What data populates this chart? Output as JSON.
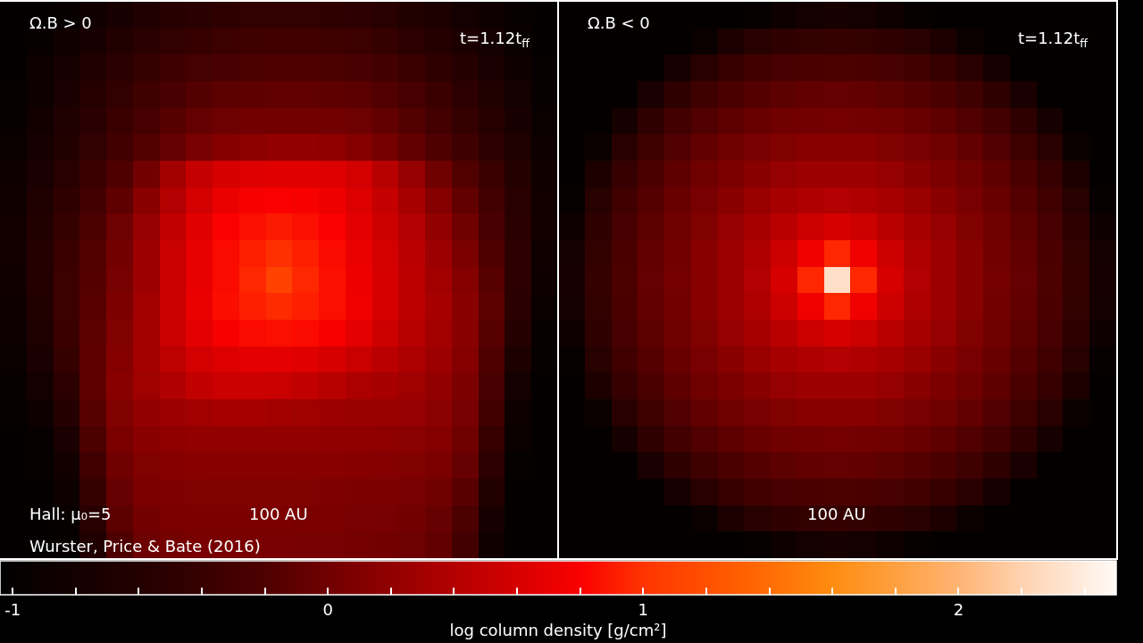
{
  "chart_data": {
    "type": "heatmap",
    "categories": [
      null,
      null,
      null,
      null,
      null,
      null,
      null,
      null,
      null,
      null,
      null,
      null,
      null,
      null,
      null,
      null,
      null,
      null,
      null,
      null,
      null,
      null,
      null,
      null,
      null,
      null,
      null,
      null,
      null,
      null,
      null,
      null,
      null,
      null,
      null,
      null,
      null,
      null,
      null,
      null,
      null,
      null
    ],
    "y_categories": [
      null,
      null,
      null,
      null,
      null,
      null,
      null,
      null,
      null,
      null,
      null,
      null,
      null,
      null,
      null,
      null,
      null,
      null,
      null,
      null,
      null
    ],
    "cells": [
      [
        -1.0,
        -1.0,
        -0.95,
        -0.85,
        -0.75,
        -0.65,
        -0.58,
        -0.52,
        -0.48,
        -0.46,
        -0.45,
        -0.45,
        -0.47,
        -0.5,
        -0.55,
        -0.62,
        -0.7,
        -0.8,
        -0.88,
        -0.95,
        -1.0,
        -1.0,
        -1.0,
        -1.0,
        -1.0,
        -1.0,
        -1.0,
        -1.0,
        -0.97,
        -0.88,
        -0.8,
        -0.78,
        -0.8,
        -0.88,
        -0.97,
        -1.0,
        -1.0,
        -1.0,
        -1.0,
        -1.0,
        -1.0,
        -1.0
      ],
      [
        -1.0,
        -0.95,
        -0.85,
        -0.75,
        -0.62,
        -0.52,
        -0.45,
        -0.4,
        -0.36,
        -0.33,
        -0.32,
        -0.32,
        -0.33,
        -0.36,
        -0.42,
        -0.5,
        -0.6,
        -0.7,
        -0.8,
        -0.92,
        -1.0,
        -1.0,
        -1.0,
        -1.0,
        -1.0,
        -1.0,
        -0.92,
        -0.7,
        -0.56,
        -0.48,
        -0.44,
        -0.42,
        -0.44,
        -0.48,
        -0.56,
        -0.7,
        -0.92,
        -1.0,
        -1.0,
        -1.0,
        -1.0,
        -1.0
      ],
      [
        -1.0,
        -0.9,
        -0.78,
        -0.65,
        -0.52,
        -0.42,
        -0.34,
        -0.28,
        -0.24,
        -0.21,
        -0.2,
        -0.2,
        -0.21,
        -0.24,
        -0.3,
        -0.38,
        -0.48,
        -0.6,
        -0.72,
        -0.86,
        -0.98,
        -1.0,
        -1.0,
        -1.0,
        -1.0,
        -0.78,
        -0.55,
        -0.41,
        -0.32,
        -0.26,
        -0.23,
        -0.22,
        -0.23,
        -0.26,
        -0.32,
        -0.41,
        -0.55,
        -0.78,
        -1.0,
        -1.0,
        -1.0,
        -1.0
      ],
      [
        -0.98,
        -0.86,
        -0.72,
        -0.58,
        -0.45,
        -0.33,
        -0.24,
        -0.17,
        -0.12,
        -0.1,
        -0.09,
        -0.09,
        -0.1,
        -0.13,
        -0.19,
        -0.27,
        -0.38,
        -0.5,
        -0.64,
        -0.8,
        -0.95,
        -1.0,
        -1.0,
        -1.0,
        -0.73,
        -0.48,
        -0.33,
        -0.23,
        -0.16,
        -0.11,
        -0.08,
        -0.07,
        -0.08,
        -0.11,
        -0.16,
        -0.23,
        -0.33,
        -0.48,
        -0.73,
        -1.0,
        -1.0,
        -1.0
      ],
      [
        -0.95,
        -0.82,
        -0.66,
        -0.52,
        -0.38,
        -0.26,
        -0.15,
        -0.07,
        -0.02,
        0.01,
        0.02,
        0.02,
        0.01,
        -0.02,
        -0.08,
        -0.17,
        -0.29,
        -0.42,
        -0.57,
        -0.74,
        -0.92,
        -1.0,
        -1.0,
        -0.78,
        -0.48,
        -0.31,
        -0.19,
        -0.1,
        -0.04,
        0.0,
        0.02,
        0.03,
        0.02,
        0.0,
        -0.04,
        -0.1,
        -0.19,
        -0.31,
        -0.48,
        -0.78,
        -1.0,
        -1.0
      ],
      [
        -0.92,
        -0.78,
        -0.62,
        -0.46,
        -0.32,
        -0.18,
        -0.06,
        0.05,
        0.12,
        0.17,
        0.2,
        0.2,
        0.18,
        0.12,
        0.03,
        -0.08,
        -0.2,
        -0.34,
        -0.5,
        -0.68,
        -0.88,
        -1.0,
        -0.92,
        -0.55,
        -0.33,
        -0.19,
        -0.08,
        0.0,
        0.05,
        0.1,
        0.14,
        0.15,
        0.14,
        0.1,
        0.05,
        0.0,
        -0.08,
        -0.19,
        -0.33,
        -0.55,
        -0.92,
        -1.0
      ],
      [
        -0.88,
        -0.72,
        -0.55,
        -0.38,
        -0.2,
        0.02,
        0.3,
        0.5,
        0.6,
        0.64,
        0.66,
        0.66,
        0.64,
        0.58,
        0.42,
        0.22,
        0.0,
        -0.18,
        -0.38,
        -0.6,
        -0.85,
        -1.0,
        -0.7,
        -0.41,
        -0.23,
        -0.1,
        0.0,
        0.07,
        0.15,
        0.22,
        0.26,
        0.27,
        0.26,
        0.22,
        0.15,
        0.07,
        0.0,
        -0.1,
        -0.23,
        -0.41,
        -0.7,
        -1.0
      ],
      [
        -0.85,
        -0.66,
        -0.48,
        -0.3,
        -0.1,
        0.15,
        0.4,
        0.58,
        0.72,
        0.78,
        0.8,
        0.78,
        0.74,
        0.64,
        0.5,
        0.32,
        0.12,
        -0.08,
        -0.3,
        -0.55,
        -0.82,
        -0.97,
        -0.56,
        -0.32,
        -0.16,
        -0.04,
        0.05,
        0.15,
        0.25,
        0.32,
        0.37,
        0.4,
        0.37,
        0.32,
        0.25,
        0.15,
        0.05,
        -0.04,
        -0.16,
        -0.32,
        -0.56,
        -0.97
      ],
      [
        -0.82,
        -0.62,
        -0.42,
        -0.22,
        -0.02,
        0.22,
        0.48,
        0.66,
        0.8,
        0.86,
        0.9,
        0.86,
        0.8,
        0.68,
        0.55,
        0.4,
        0.2,
        0.0,
        -0.25,
        -0.52,
        -0.82,
        -0.88,
        -0.48,
        -0.26,
        -0.11,
        0.0,
        0.1,
        0.22,
        0.32,
        0.43,
        0.55,
        0.6,
        0.55,
        0.43,
        0.32,
        0.22,
        0.1,
        0.0,
        -0.11,
        -0.26,
        -0.48,
        -0.88
      ],
      [
        -0.82,
        -0.6,
        -0.38,
        -0.18,
        0.02,
        0.26,
        0.52,
        0.7,
        0.84,
        0.92,
        0.98,
        0.92,
        0.84,
        0.72,
        0.58,
        0.44,
        0.26,
        0.06,
        -0.2,
        -0.5,
        -0.85,
        -0.8,
        -0.44,
        -0.23,
        -0.08,
        0.02,
        0.14,
        0.26,
        0.37,
        0.55,
        0.75,
        0.95,
        0.75,
        0.55,
        0.37,
        0.26,
        0.14,
        0.02,
        -0.08,
        -0.23,
        -0.44,
        -0.8
      ],
      [
        -0.85,
        -0.6,
        -0.36,
        -0.16,
        0.04,
        0.26,
        0.52,
        0.7,
        0.84,
        0.95,
        1.1,
        0.95,
        0.86,
        0.74,
        0.6,
        0.45,
        0.3,
        0.12,
        -0.15,
        -0.5,
        -0.88,
        -0.78,
        -0.42,
        -0.22,
        -0.07,
        0.03,
        0.15,
        0.27,
        0.4,
        0.6,
        0.95,
        2.3,
        0.95,
        0.6,
        0.4,
        0.27,
        0.15,
        0.03,
        -0.07,
        -0.22,
        -0.42,
        -0.78
      ],
      [
        -0.88,
        -0.62,
        -0.36,
        -0.14,
        0.08,
        0.3,
        0.54,
        0.72,
        0.85,
        0.92,
        0.96,
        0.92,
        0.86,
        0.75,
        0.6,
        0.45,
        0.32,
        0.15,
        -0.12,
        -0.52,
        -0.92,
        -0.8,
        -0.44,
        -0.23,
        -0.08,
        0.02,
        0.14,
        0.26,
        0.37,
        0.55,
        0.75,
        0.95,
        0.75,
        0.55,
        0.37,
        0.26,
        0.14,
        0.02,
        -0.08,
        -0.23,
        -0.44,
        -0.8
      ],
      [
        -0.9,
        -0.66,
        -0.38,
        -0.12,
        0.1,
        0.3,
        0.52,
        0.68,
        0.78,
        0.84,
        0.86,
        0.84,
        0.78,
        0.68,
        0.55,
        0.42,
        0.3,
        0.14,
        -0.15,
        -0.6,
        -0.95,
        -0.88,
        -0.48,
        -0.26,
        -0.11,
        0.0,
        0.1,
        0.22,
        0.32,
        0.43,
        0.55,
        0.6,
        0.55,
        0.43,
        0.32,
        0.22,
        0.1,
        0.0,
        -0.11,
        -0.26,
        -0.48,
        -0.88
      ],
      [
        -0.92,
        -0.72,
        -0.42,
        -0.1,
        0.12,
        0.3,
        0.46,
        0.58,
        0.64,
        0.68,
        0.68,
        0.66,
        0.6,
        0.52,
        0.44,
        0.36,
        0.26,
        0.12,
        -0.2,
        -0.7,
        -0.98,
        -0.97,
        -0.56,
        -0.32,
        -0.16,
        -0.04,
        0.05,
        0.15,
        0.25,
        0.32,
        0.37,
        0.4,
        0.37,
        0.32,
        0.25,
        0.15,
        0.05,
        -0.04,
        -0.16,
        -0.32,
        -0.56,
        -0.97
      ],
      [
        -0.95,
        -0.8,
        -0.5,
        -0.1,
        0.14,
        0.28,
        0.38,
        0.48,
        0.54,
        0.54,
        0.52,
        0.48,
        0.42,
        0.36,
        0.32,
        0.28,
        0.2,
        0.08,
        -0.25,
        -0.8,
        -1.0,
        -1.0,
        -0.7,
        -0.41,
        -0.23,
        -0.1,
        0.0,
        0.07,
        0.15,
        0.22,
        0.26,
        0.27,
        0.26,
        0.22,
        0.15,
        0.07,
        0.0,
        -0.1,
        -0.23,
        -0.41,
        -0.7,
        -1.0
      ],
      [
        -0.98,
        -0.88,
        -0.6,
        -0.15,
        0.1,
        0.2,
        0.26,
        0.3,
        0.32,
        0.32,
        0.3,
        0.28,
        0.26,
        0.25,
        0.24,
        0.22,
        0.16,
        0.04,
        -0.32,
        -0.88,
        -1.0,
        -1.0,
        -0.92,
        -0.55,
        -0.33,
        -0.19,
        -0.08,
        0.0,
        0.05,
        0.1,
        0.14,
        0.15,
        0.14,
        0.1,
        0.05,
        0.0,
        -0.08,
        -0.19,
        -0.33,
        -0.55,
        -0.92,
        -1.0
      ],
      [
        -1.0,
        -0.95,
        -0.72,
        -0.22,
        0.06,
        0.14,
        0.18,
        0.2,
        0.21,
        0.21,
        0.2,
        0.2,
        0.19,
        0.19,
        0.18,
        0.16,
        0.12,
        0.0,
        -0.4,
        -0.92,
        -1.0,
        -1.0,
        -1.0,
        -0.78,
        -0.48,
        -0.31,
        -0.19,
        -0.1,
        -0.04,
        0.0,
        0.02,
        0.03,
        0.02,
        0.0,
        -0.04,
        -0.1,
        -0.19,
        -0.31,
        -0.48,
        -0.78,
        -1.0,
        -1.0
      ],
      [
        -1.0,
        -0.98,
        -0.82,
        -0.32,
        0.0,
        0.1,
        0.13,
        0.14,
        0.15,
        0.15,
        0.15,
        0.14,
        0.14,
        0.13,
        0.12,
        0.1,
        0.06,
        -0.06,
        -0.5,
        -0.96,
        -1.0,
        -1.0,
        -1.0,
        -1.0,
        -0.73,
        -0.48,
        -0.33,
        -0.23,
        -0.16,
        -0.11,
        -0.08,
        -0.07,
        -0.08,
        -0.11,
        -0.16,
        -0.23,
        -0.33,
        -0.48,
        -0.73,
        -1.0,
        -1.0,
        -1.0
      ],
      [
        -1.0,
        -1.0,
        -0.9,
        -0.42,
        -0.05,
        0.06,
        0.09,
        0.1,
        0.1,
        0.1,
        0.1,
        0.1,
        0.09,
        0.08,
        0.07,
        0.05,
        0.0,
        -0.14,
        -0.62,
        -1.0,
        -1.0,
        -1.0,
        -1.0,
        -1.0,
        -1.0,
        -0.78,
        -0.55,
        -0.41,
        -0.32,
        -0.26,
        -0.23,
        -0.22,
        -0.23,
        -0.26,
        -0.32,
        -0.41,
        -0.55,
        -0.78,
        -1.0,
        -1.0,
        -1.0,
        -1.0
      ],
      [
        -1.0,
        -1.0,
        -0.95,
        -0.55,
        -0.12,
        0.02,
        0.06,
        0.07,
        0.07,
        0.07,
        0.07,
        0.06,
        0.06,
        0.05,
        0.04,
        0.01,
        -0.05,
        -0.22,
        -0.75,
        -1.0,
        -1.0,
        -1.0,
        -1.0,
        -1.0,
        -1.0,
        -1.0,
        -0.92,
        -0.7,
        -0.56,
        -0.48,
        -0.44,
        -0.42,
        -0.44,
        -0.48,
        -0.56,
        -0.7,
        -0.92,
        -1.0,
        -1.0,
        -1.0,
        -1.0,
        -1.0
      ],
      [
        -1.0,
        -1.0,
        -0.98,
        -0.65,
        -0.2,
        -0.02,
        0.03,
        0.05,
        0.05,
        0.05,
        0.05,
        0.04,
        0.04,
        0.03,
        0.02,
        -0.02,
        -0.08,
        -0.3,
        -0.85,
        -1.0,
        -1.0,
        -1.0,
        -1.0,
        -1.0,
        -1.0,
        -1.0,
        -1.0,
        -1.0,
        -0.97,
        -0.88,
        -0.8,
        -0.78,
        -0.8,
        -0.88,
        -0.97,
        -1.0,
        -1.0,
        -1.0,
        -1.0,
        -1.0,
        -1.0,
        -1.0
      ]
    ],
    "clim": [
      -1.04,
      2.5
    ],
    "cticks": [
      -1,
      {
        "value": -0.8,
        "label": null
      },
      {
        "value": -0.6,
        "label": null
      },
      {
        "value": -0.4,
        "label": null
      },
      {
        "value": -0.2,
        "label": null
      },
      0,
      {
        "value": 0.2,
        "label": null
      },
      {
        "value": 0.4,
        "label": null
      },
      {
        "value": 0.6,
        "label": null
      },
      {
        "value": 0.8,
        "label": null
      },
      1,
      {
        "value": 1.2,
        "label": null
      },
      {
        "value": 1.4,
        "label": null
      },
      {
        "value": 1.6,
        "label": null
      },
      {
        "value": 1.8,
        "label": null
      },
      2,
      {
        "value": 2.2,
        "label": null
      },
      {
        "value": 2.4,
        "label": null
      }
    ],
    "clabel": "log column density [g/cm²]",
    "annotations": [
      "Ω.B > 0",
      "t=1.12t$_{ff}$",
      "Hall: μ₀=5",
      "100 AU",
      "Wurster, Price & Bate (2016)",
      "Ω.B < 0",
      "t=1.12t$_{ff}$",
      "100 AU"
    ]
  }
}
